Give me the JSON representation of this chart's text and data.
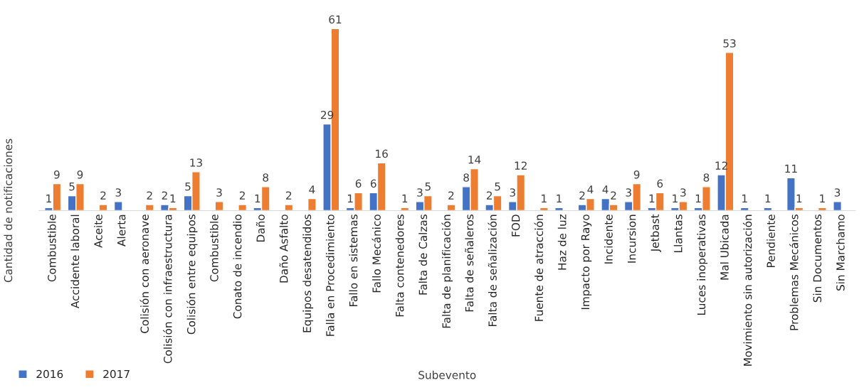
{
  "chart_data": {
    "type": "bar",
    "xlabel": "Subevento",
    "ylabel": "Cantidad de notificaciones",
    "categories": [
      "Combustible",
      "Accidente laboral",
      "Aceite",
      "Alerta",
      "Colisión con aeronave",
      "Colisión con infraestructura",
      "Colisión entre equipos",
      "Combustible",
      "Conato de incendio",
      "Daño",
      "Daño Asfalto",
      "Equipos desatendidos",
      "Falla en Procedimiento",
      "Fallo en sistemas",
      "Fallo Mecánico",
      "Falta contenedores",
      "Falta de Calzas",
      "Falta de planificación",
      "Falta de señaleros",
      "Falta de señalización",
      "FOD",
      "Fuente de atracción",
      "Haz de luz",
      "Impacto por Rayo",
      "Incidente",
      "Incursion",
      "Jetbast",
      "Llantas",
      "Luces inoperativas",
      "Mal Ubicada",
      "Movimiento sin autorización",
      "Pendiente",
      "Problemas Mecánicos",
      "Sin Documentos",
      "Sin Marchamo"
    ],
    "series": [
      {
        "name": "2016",
        "color": "#4472c4",
        "values": [
          1,
          5,
          null,
          3,
          null,
          2,
          5,
          null,
          null,
          1,
          null,
          null,
          29,
          1,
          6,
          null,
          3,
          null,
          8,
          2,
          3,
          null,
          1,
          2,
          4,
          3,
          1,
          1,
          1,
          12,
          1,
          1,
          11,
          null,
          3
        ]
      },
      {
        "name": "2017",
        "color": "#ed7d31",
        "values": [
          9,
          9,
          2,
          null,
          2,
          1,
          13,
          3,
          2,
          8,
          2,
          4,
          61,
          6,
          16,
          1,
          5,
          2,
          14,
          5,
          12,
          1,
          null,
          4,
          2,
          9,
          6,
          3,
          8,
          53,
          null,
          null,
          1,
          1,
          null
        ]
      }
    ],
    "data_labels": true,
    "grid": false,
    "legend": "bottom left"
  }
}
